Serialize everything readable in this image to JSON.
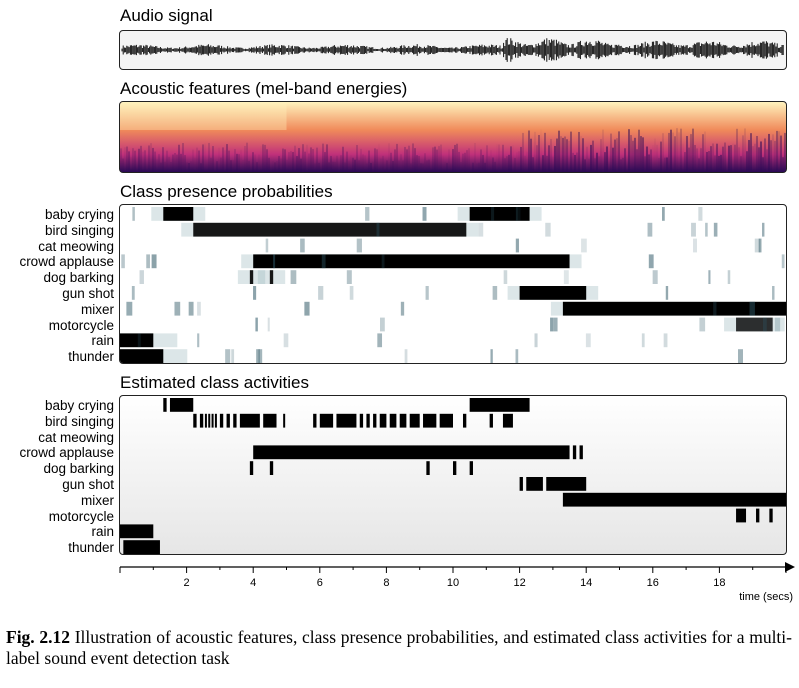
{
  "panels": {
    "audio": {
      "title": "Audio signal"
    },
    "features": {
      "title": "Acoustic features (mel-band energies)"
    },
    "probabilities": {
      "title": "Class presence probabilities"
    },
    "activities": {
      "title": "Estimated class activities"
    }
  },
  "classes": [
    "baby crying",
    "bird singing",
    "cat meowing",
    "crowd applause",
    "dog barking",
    "gun shot",
    "mixer",
    "motorcycle",
    "rain",
    "thunder"
  ],
  "colors": {
    "activity": "#000000",
    "heatmap_low": "#2a0a55",
    "heatmap_mid": "#c0307a",
    "heatmap_high": "#fff3bd"
  },
  "caption": {
    "label": "Fig. 2.12",
    "text": " Illustration of acoustic features, class presence probabilities, and estimated class activities for a multi-label sound event detection task"
  },
  "chart_data": [
    {
      "type": "line",
      "title": "Audio signal",
      "description_of_marks": "waveform",
      "x_range": [
        0,
        20
      ]
    },
    {
      "type": "heatmap",
      "title": "Acoustic features (mel-band energies)",
      "x_range": [
        0,
        20
      ]
    },
    {
      "type": "heatmap",
      "title": "Class presence probabilities",
      "x_range": [
        0,
        20
      ],
      "rows": [
        "baby crying",
        "bird singing",
        "cat meowing",
        "crowd applause",
        "dog barking",
        "gun shot",
        "mixer",
        "motorcycle",
        "rain",
        "thunder"
      ],
      "segments": [
        {
          "class": "baby crying",
          "start": 1.3,
          "end": 2.2,
          "p": 1.0
        },
        {
          "class": "baby crying",
          "start": 10.5,
          "end": 12.3,
          "p": 1.0
        },
        {
          "class": "bird singing",
          "start": 2.2,
          "end": 10.4,
          "p": 0.9
        },
        {
          "class": "crowd applause",
          "start": 4.0,
          "end": 13.5,
          "p": 1.0
        },
        {
          "class": "dog barking",
          "start": 3.9,
          "end": 4.0,
          "p": 0.9
        },
        {
          "class": "dog barking",
          "start": 4.5,
          "end": 4.6,
          "p": 0.9
        },
        {
          "class": "gun shot",
          "start": 12.0,
          "end": 14.0,
          "p": 1.0
        },
        {
          "class": "mixer",
          "start": 13.3,
          "end": 20.0,
          "p": 1.0
        },
        {
          "class": "motorcycle",
          "start": 18.5,
          "end": 19.6,
          "p": 0.8
        },
        {
          "class": "rain",
          "start": 0.0,
          "end": 1.0,
          "p": 1.0
        },
        {
          "class": "thunder",
          "start": 0.0,
          "end": 1.3,
          "p": 1.0
        }
      ]
    },
    {
      "type": "bar",
      "title": "Estimated class activities",
      "xlabel": "time (secs)",
      "x_range": [
        0,
        20
      ],
      "x_ticks": [
        2,
        4,
        6,
        8,
        10,
        12,
        14,
        16,
        18
      ],
      "rows": [
        "baby crying",
        "bird singing",
        "cat meowing",
        "crowd applause",
        "dog barking",
        "gun shot",
        "mixer",
        "motorcycle",
        "rain",
        "thunder"
      ],
      "activities": {
        "baby crying": [
          [
            1.3,
            1.4
          ],
          [
            1.5,
            2.2
          ],
          [
            10.5,
            12.3
          ]
        ],
        "bird singing": [
          [
            2.2,
            2.3
          ],
          [
            2.4,
            2.5
          ],
          [
            2.55,
            2.6
          ],
          [
            2.65,
            2.7
          ],
          [
            2.75,
            2.8
          ],
          [
            2.85,
            2.9
          ],
          [
            3.0,
            3.1
          ],
          [
            3.2,
            3.3
          ],
          [
            3.4,
            3.5
          ],
          [
            3.6,
            4.2
          ],
          [
            4.3,
            4.7
          ],
          [
            4.9,
            4.95
          ],
          [
            5.8,
            5.9
          ],
          [
            6.0,
            6.4
          ],
          [
            6.5,
            7.1
          ],
          [
            7.2,
            7.3
          ],
          [
            7.4,
            7.5
          ],
          [
            7.6,
            7.7
          ],
          [
            7.8,
            8.0
          ],
          [
            8.1,
            8.3
          ],
          [
            8.4,
            8.6
          ],
          [
            8.7,
            9.0
          ],
          [
            9.1,
            9.5
          ],
          [
            9.6,
            10.0
          ],
          [
            10.3,
            10.4
          ],
          [
            11.1,
            11.2
          ],
          [
            11.5,
            11.8
          ]
        ],
        "cat meowing": [],
        "crowd applause": [
          [
            4.0,
            13.5
          ],
          [
            13.6,
            13.7
          ],
          [
            13.8,
            13.9
          ],
          [
            20.0,
            20.1
          ]
        ],
        "dog barking": [
          [
            3.9,
            4.0
          ],
          [
            4.5,
            4.6
          ],
          [
            9.2,
            9.3
          ],
          [
            10.0,
            10.1
          ],
          [
            10.5,
            10.6
          ]
        ],
        "gun shot": [
          [
            12.0,
            12.1
          ],
          [
            12.2,
            12.7
          ],
          [
            12.8,
            14.0
          ]
        ],
        "mixer": [
          [
            13.3,
            20.1
          ]
        ],
        "motorcycle": [
          [
            18.5,
            18.8
          ],
          [
            19.1,
            19.2
          ],
          [
            19.5,
            19.6
          ]
        ],
        "rain": [
          [
            0.0,
            1.0
          ]
        ],
        "thunder": [
          [
            0.1,
            1.2
          ]
        ]
      }
    }
  ]
}
